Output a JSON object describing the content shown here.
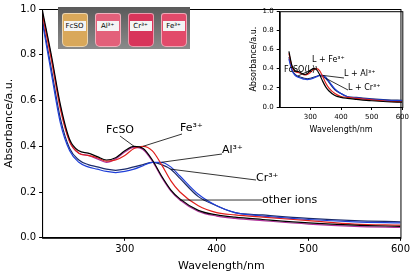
{
  "chart_data": [
    {
      "type": "line",
      "x_label": "Wavelength/nm",
      "y_label": "Absorbance/a.u.",
      "x": [
        210,
        220,
        230,
        240,
        250,
        260,
        270,
        280,
        290,
        300,
        310,
        320,
        330,
        340,
        350,
        360,
        380,
        400,
        420,
        450,
        500,
        550,
        600
      ],
      "series": [
        {
          "name": "FcSO",
          "color": "#000000",
          "values": [
            1.0,
            0.8,
            0.58,
            0.43,
            0.38,
            0.37,
            0.355,
            0.34,
            0.35,
            0.38,
            0.4,
            0.39,
            0.34,
            0.27,
            0.21,
            0.17,
            0.12,
            0.1,
            0.09,
            0.08,
            0.065,
            0.055,
            0.05
          ]
        },
        {
          "name": "Fe³⁺",
          "color": "#e0201c",
          "values": [
            0.98,
            0.78,
            0.56,
            0.42,
            0.37,
            0.36,
            0.35,
            0.335,
            0.34,
            0.36,
            0.39,
            0.4,
            0.38,
            0.32,
            0.25,
            0.2,
            0.14,
            0.11,
            0.1,
            0.09,
            0.075,
            0.06,
            0.055
          ]
        },
        {
          "name": "Al³⁺",
          "color": "#1f3fd8",
          "values": [
            0.95,
            0.72,
            0.5,
            0.38,
            0.33,
            0.31,
            0.3,
            0.29,
            0.285,
            0.29,
            0.3,
            0.315,
            0.33,
            0.33,
            0.31,
            0.27,
            0.19,
            0.14,
            0.11,
            0.095,
            0.08,
            0.07,
            0.065
          ]
        },
        {
          "name": "Cr³⁺",
          "color": "#1a2a6a",
          "values": [
            0.96,
            0.74,
            0.52,
            0.39,
            0.34,
            0.32,
            0.31,
            0.3,
            0.295,
            0.3,
            0.31,
            0.32,
            0.33,
            0.32,
            0.3,
            0.26,
            0.18,
            0.14,
            0.11,
            0.1,
            0.085,
            0.075,
            0.07
          ]
        },
        {
          "name": "other ions",
          "color": "#b0309a",
          "values": [
            0.99,
            0.79,
            0.57,
            0.42,
            0.37,
            0.36,
            0.345,
            0.33,
            0.345,
            0.375,
            0.395,
            0.385,
            0.335,
            0.265,
            0.205,
            0.165,
            0.115,
            0.095,
            0.085,
            0.075,
            0.06,
            0.05,
            0.045
          ]
        }
      ],
      "xlim": [
        210,
        600
      ],
      "xticks": [
        300,
        400,
        500,
        600
      ],
      "ylim": [
        0,
        1.0
      ],
      "yticks": [
        {
          "value": 0,
          "label": "0.0"
        },
        {
          "value": 0.2,
          "label": "0.2"
        },
        {
          "value": 0.4,
          "label": "0.4"
        },
        {
          "value": 0.6,
          "label": "0.6"
        },
        {
          "value": 0.8,
          "label": "0.8"
        },
        {
          "value": 1.0,
          "label": "1.0"
        }
      ],
      "grid": false
    },
    {
      "type": "line",
      "x_label": "Wavelength/nm",
      "y_label": "Absorbance/a.u.",
      "x": [
        230,
        240,
        250,
        260,
        270,
        280,
        290,
        300,
        310,
        320,
        330,
        340,
        350,
        360,
        380,
        400,
        420,
        450,
        500,
        550,
        600
      ],
      "series": [
        {
          "name": "FcSO(L)",
          "color": "#000000",
          "values": [
            0.58,
            0.43,
            0.38,
            0.37,
            0.355,
            0.34,
            0.35,
            0.38,
            0.4,
            0.39,
            0.34,
            0.27,
            0.21,
            0.17,
            0.12,
            0.1,
            0.09,
            0.08,
            0.065,
            0.055,
            0.05
          ]
        },
        {
          "name": "L + Fe³⁺",
          "color": "#e0201c",
          "values": [
            0.56,
            0.42,
            0.37,
            0.36,
            0.35,
            0.335,
            0.34,
            0.36,
            0.39,
            0.4,
            0.38,
            0.32,
            0.25,
            0.2,
            0.14,
            0.11,
            0.1,
            0.09,
            0.075,
            0.06,
            0.055
          ]
        },
        {
          "name": "L + Al³⁺",
          "color": "#1f3fd8",
          "values": [
            0.5,
            0.38,
            0.33,
            0.31,
            0.3,
            0.29,
            0.285,
            0.29,
            0.3,
            0.315,
            0.33,
            0.33,
            0.31,
            0.27,
            0.19,
            0.14,
            0.11,
            0.095,
            0.08,
            0.07,
            0.065
          ]
        },
        {
          "name": "L + Cr³⁺",
          "color": "#1a2a6a",
          "values": [
            0.52,
            0.39,
            0.34,
            0.32,
            0.31,
            0.3,
            0.295,
            0.3,
            0.31,
            0.32,
            0.33,
            0.32,
            0.3,
            0.26,
            0.18,
            0.14,
            0.11,
            0.1,
            0.085,
            0.075,
            0.07
          ]
        }
      ],
      "xlim": [
        200,
        600
      ],
      "xticks": [
        300,
        400,
        500,
        600
      ],
      "ylim": [
        0,
        1.0
      ],
      "yticks": [
        {
          "value": 0,
          "label": "0.0"
        },
        {
          "value": 0.2,
          "label": "0.2"
        },
        {
          "value": 0.4,
          "label": "0.4"
        },
        {
          "value": 0.6,
          "label": "0.6"
        },
        {
          "value": 0.8,
          "label": "0.8"
        },
        {
          "value": 1.0,
          "label": "1.0"
        }
      ],
      "grid": false
    }
  ],
  "photo": {
    "vials": [
      {
        "label": "FcSO",
        "color": "#d9a85a"
      },
      {
        "label": "Al³⁺",
        "color": "#e3607a"
      },
      {
        "label": "Cr³⁺",
        "color": "#d8345a"
      },
      {
        "label": "Fe³⁺",
        "color": "#e24a6a"
      }
    ]
  }
}
